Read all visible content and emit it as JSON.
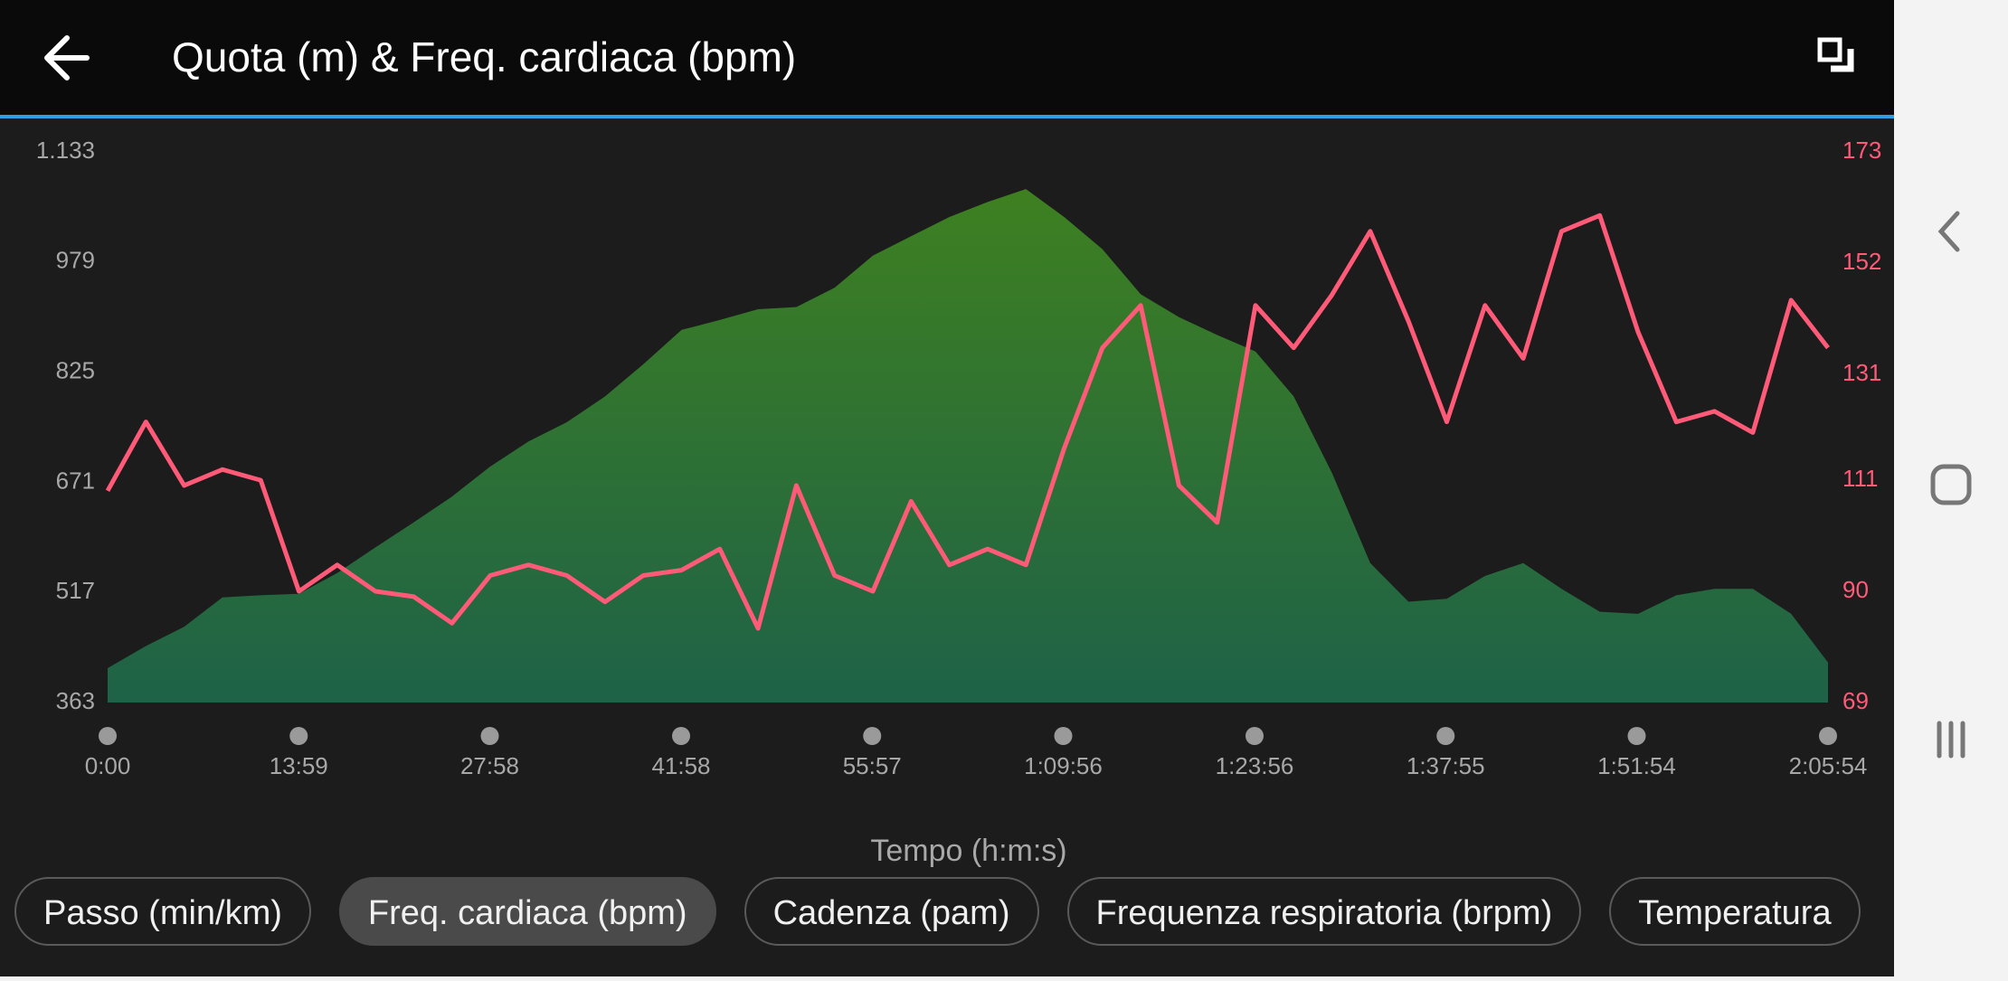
{
  "chart_data": {
    "type": "line",
    "title": "Quota (m) & Freq. cardiaca (bpm)",
    "xlabel": "Tempo (h:m:s)",
    "x": [
      0,
      168,
      336,
      504,
      672,
      840,
      1008,
      1176,
      1344,
      1512,
      1680,
      1848,
      2016,
      2184,
      2352,
      2520,
      2688,
      2856,
      3024,
      3192,
      3360,
      3528,
      3696,
      3864,
      4032,
      4200,
      4368,
      4536,
      4704,
      4872,
      5040,
      5208,
      5376,
      5544,
      5712,
      5880,
      6048,
      6216,
      6384,
      6552,
      6720,
      6888,
      7056,
      7224,
      7392,
      7554
    ],
    "series": [
      {
        "type": "area",
        "color_top": "#3e8020",
        "color_bottom": "#1e6248",
        "values": [
          411,
          442,
          469,
          510,
          513,
          515,
          544,
          580,
          615,
          651,
          693,
          728,
          755,
          791,
          836,
          884,
          898,
          913,
          916,
          943,
          988,
          1015,
          1042,
          1063,
          1081,
          1042,
          997,
          934,
          902,
          877,
          854,
          791,
          684,
          558,
          504,
          508,
          540,
          558,
          522,
          490,
          487,
          513,
          522,
          522,
          487,
          419
        ]
      },
      {
        "type": "line",
        "axis": "y2",
        "color": "#ff5a78",
        "values": [
          109,
          122,
          110,
          113,
          111,
          90,
          95,
          90,
          89,
          84,
          93,
          95,
          93,
          88,
          93,
          94,
          98,
          83,
          110,
          93,
          90,
          107,
          95,
          98,
          95,
          117,
          136,
          144,
          110,
          103,
          144,
          136,
          146,
          158,
          141,
          122,
          144,
          134,
          158,
          161,
          139,
          122,
          124,
          120,
          145,
          136
        ]
      }
    ],
    "xlim": [
      0,
      7554
    ],
    "xticks": [
      {
        "value": 0,
        "label": "0:00"
      },
      {
        "value": 839,
        "label": "13:59"
      },
      {
        "value": 1678,
        "label": "27:58"
      },
      {
        "value": 2518,
        "label": "41:58"
      },
      {
        "value": 3357,
        "label": "55:57"
      },
      {
        "value": 4196,
        "label": "1:09:56"
      },
      {
        "value": 5036,
        "label": "1:23:56"
      },
      {
        "value": 5875,
        "label": "1:37:55"
      },
      {
        "value": 6714,
        "label": "1:51:54"
      },
      {
        "value": 7554,
        "label": "2:05:54"
      }
    ],
    "ylim": [
      363,
      1133
    ],
    "yticks": [
      363,
      517,
      671,
      825,
      979,
      {
        "value": 1133,
        "label": "1.133"
      }
    ],
    "y2lim": [
      69,
      173
    ],
    "y2ticks": [
      69,
      90,
      111,
      131,
      152,
      173
    ],
    "ytick_color": "#a8a8a8",
    "y2tick_color": "#ff5a78"
  },
  "chips": [
    "Passo (min/km)",
    "Freq. cardiaca (bpm)",
    "Cadenza (pam)",
    "Frequenza respiratoria (brpm)",
    "Temperatura"
  ],
  "selected_chip": 1
}
